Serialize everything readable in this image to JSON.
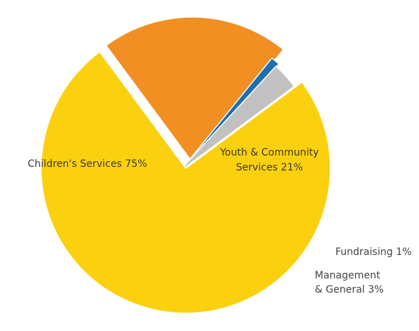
{
  "chart_data": {
    "type": "pie",
    "exploded": true,
    "slices": [
      {
        "name": "Children's Services",
        "value": 75,
        "label_lines": [
          "Children's Services  75%"
        ],
        "color": "#FBD00F",
        "label_color": "#3a3a3a"
      },
      {
        "name": "Youth & Community Services",
        "value": 21,
        "label_lines": [
          "Youth & Community",
          "Services  21%"
        ],
        "color": "#F18F22",
        "label_color": "#3a3a3a"
      },
      {
        "name": "Fundraising",
        "value": 1,
        "label_lines": [
          "Fundraising 1%"
        ],
        "color": "#1F6EB0",
        "label_color": "#444444"
      },
      {
        "name": "Management & General",
        "value": 3,
        "label_lines": [
          "Management",
          "& General 3%"
        ],
        "color": "#C1C1C1",
        "label_color": "#444444"
      }
    ]
  }
}
